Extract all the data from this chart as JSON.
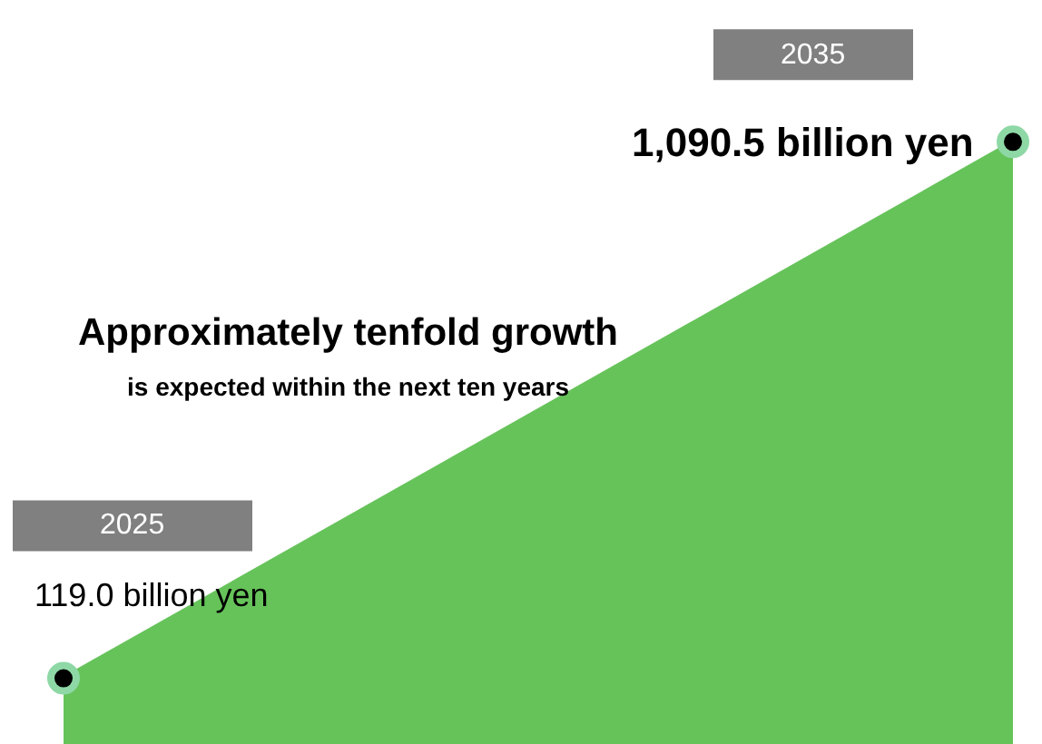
{
  "chart_data": {
    "type": "area",
    "title": "Approximately tenfold growth",
    "subtitle": "is expected within the next ten years",
    "categories": [
      "2025",
      "2035"
    ],
    "series": [
      {
        "color": "#66c35a",
        "values": [
          119.0,
          1090.5
        ],
        "value_labels": [
          "119.0 billion yen",
          "1,090.5 billion yen"
        ]
      }
    ],
    "marker": "circle",
    "tick_labels": false,
    "legend": false
  }
}
